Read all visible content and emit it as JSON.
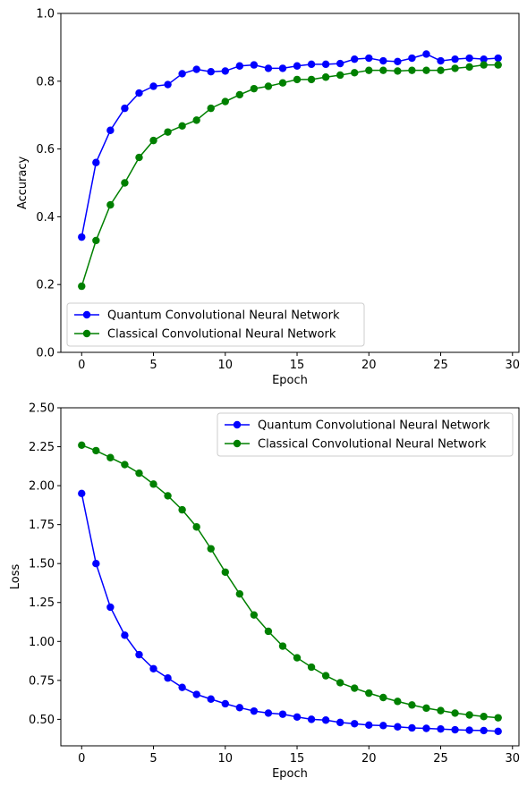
{
  "chart_data": [
    {
      "type": "line",
      "xlabel": "Epoch",
      "ylabel": "Accuracy",
      "xlim": [
        -1.45,
        30.45
      ],
      "ylim": [
        0,
        1.0
      ],
      "xticks": [
        0,
        5,
        10,
        15,
        20,
        25,
        30
      ],
      "yticks": [
        0.0,
        0.2,
        0.4,
        0.6,
        0.8,
        1.0
      ],
      "ytick_labels": [
        "0.0",
        "0.2",
        "0.4",
        "0.6",
        "0.8",
        "1.0"
      ],
      "grid": false,
      "legend_position": "lower-left",
      "x": [
        0,
        1,
        2,
        3,
        4,
        5,
        6,
        7,
        8,
        9,
        10,
        11,
        12,
        13,
        14,
        15,
        16,
        17,
        18,
        19,
        20,
        21,
        22,
        23,
        24,
        25,
        26,
        27,
        28,
        29
      ],
      "series": [
        {
          "name": "Quantum Convolutional Neural Network",
          "color": "#0000ff",
          "values": [
            0.34,
            0.56,
            0.655,
            0.72,
            0.765,
            0.785,
            0.79,
            0.822,
            0.835,
            0.828,
            0.83,
            0.845,
            0.848,
            0.838,
            0.838,
            0.845,
            0.85,
            0.85,
            0.852,
            0.865,
            0.868,
            0.86,
            0.858,
            0.868,
            0.88,
            0.86,
            0.865,
            0.868,
            0.865,
            0.868
          ]
        },
        {
          "name": "Classical Convolutional Neural Network",
          "color": "#008000",
          "values": [
            0.195,
            0.33,
            0.435,
            0.5,
            0.575,
            0.625,
            0.65,
            0.668,
            0.685,
            0.72,
            0.74,
            0.76,
            0.778,
            0.785,
            0.795,
            0.805,
            0.805,
            0.812,
            0.818,
            0.825,
            0.832,
            0.832,
            0.83,
            0.832,
            0.832,
            0.832,
            0.838,
            0.842,
            0.848,
            0.848
          ]
        }
      ]
    },
    {
      "type": "line",
      "xlabel": "Epoch",
      "ylabel": "Loss",
      "xlim": [
        -1.45,
        30.45
      ],
      "ylim": [
        0.33,
        2.5
      ],
      "xticks": [
        0,
        5,
        10,
        15,
        20,
        25,
        30
      ],
      "yticks": [
        0.5,
        0.75,
        1.0,
        1.25,
        1.5,
        1.75,
        2.0,
        2.25,
        2.5
      ],
      "ytick_labels": [
        "0.50",
        "0.75",
        "1.00",
        "1.25",
        "1.50",
        "1.75",
        "2.00",
        "2.25",
        "2.50"
      ],
      "grid": false,
      "legend_position": "top-right",
      "x": [
        0,
        1,
        2,
        3,
        4,
        5,
        6,
        7,
        8,
        9,
        10,
        11,
        12,
        13,
        14,
        15,
        16,
        17,
        18,
        19,
        20,
        21,
        22,
        23,
        24,
        25,
        26,
        27,
        28,
        29
      ],
      "series": [
        {
          "name": "Quantum Convolutional Neural Network",
          "color": "#0000ff",
          "values": [
            1.95,
            1.5,
            1.22,
            1.04,
            0.915,
            0.825,
            0.765,
            0.705,
            0.66,
            0.63,
            0.6,
            0.575,
            0.553,
            0.54,
            0.533,
            0.515,
            0.5,
            0.495,
            0.48,
            0.472,
            0.463,
            0.46,
            0.452,
            0.445,
            0.442,
            0.438,
            0.433,
            0.43,
            0.428,
            0.423
          ]
        },
        {
          "name": "Classical Convolutional Neural Network",
          "color": "#008000",
          "values": [
            2.26,
            2.225,
            2.18,
            2.135,
            2.08,
            2.01,
            1.935,
            1.845,
            1.735,
            1.595,
            1.445,
            1.305,
            1.17,
            1.065,
            0.97,
            0.895,
            0.835,
            0.78,
            0.735,
            0.7,
            0.668,
            0.64,
            0.615,
            0.592,
            0.572,
            0.556,
            0.54,
            0.528,
            0.518,
            0.51
          ]
        }
      ]
    }
  ]
}
